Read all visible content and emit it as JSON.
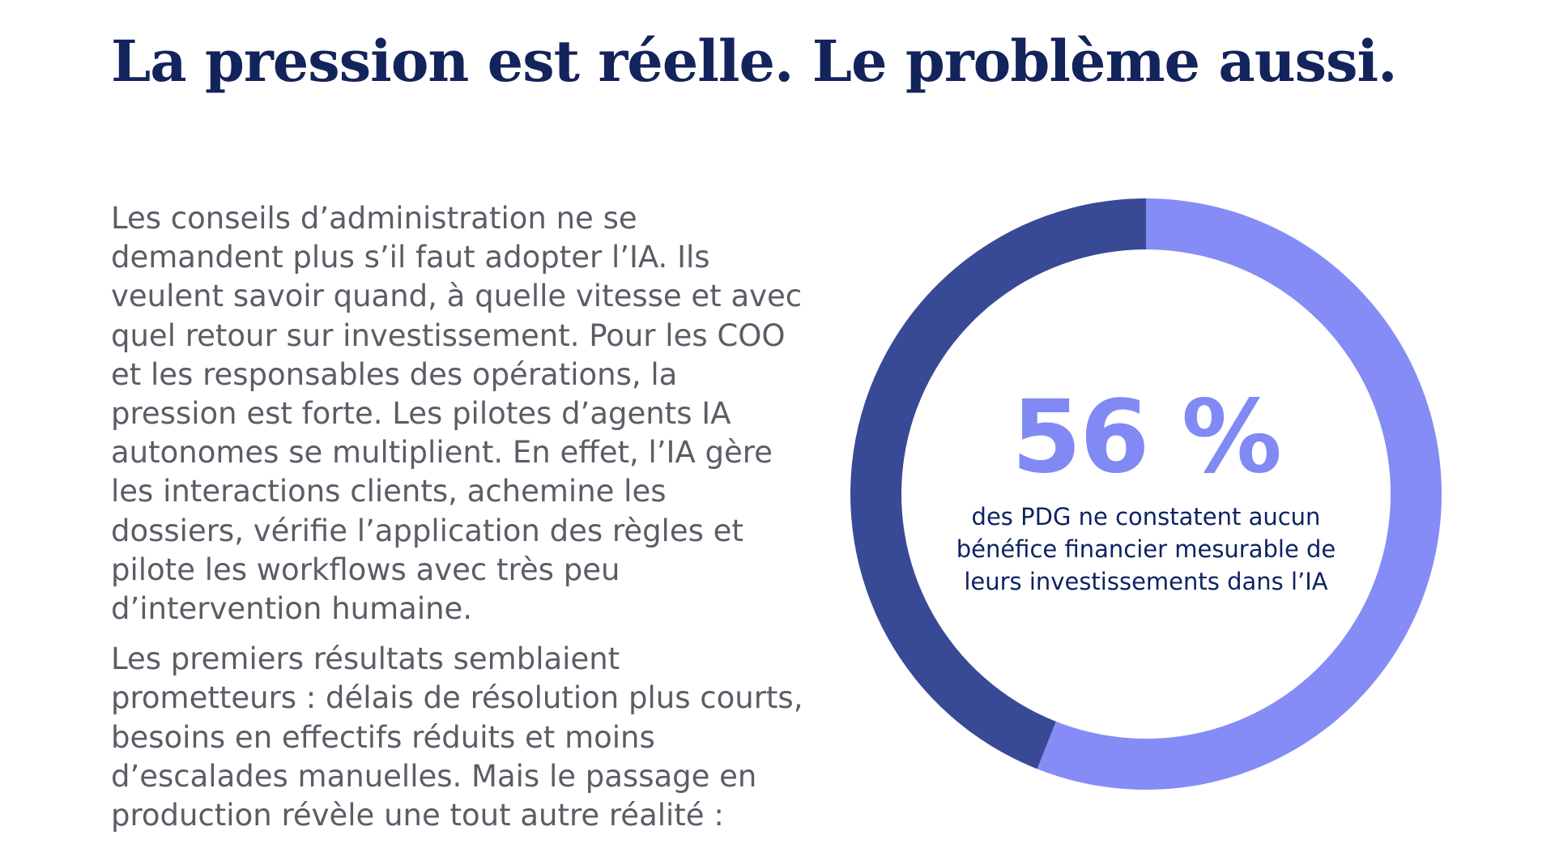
{
  "title": "La pression est réelle. Le problème aussi.",
  "body": {
    "paragraphs": [
      "Les conseils d’administration ne se demandent plus s’il faut adopter l’IA. Ils veulent savoir quand, à quelle vitesse et avec quel retour sur investissement. Pour les COO et les responsables des opérations, la pression est forte. Les pilotes d’agents IA autonomes se multiplient. En effet, l’IA gère les interactions clients, achemine les dossiers, vérifie l’application des règles et pilote les workflows avec très peu d’intervention humaine.",
      "Les premiers résultats semblaient prometteurs : délais de résolution plus courts, besoins en effectifs réduits et moins d’escalades manuelles. Mais le passage en production révèle une tout autre réalité :"
    ]
  },
  "stat": {
    "value": "56 %",
    "caption": "des PDG ne constatent aucun bénéfice financier mesurable de leurs investissements dans l’IA"
  },
  "chart_data": {
    "type": "pie",
    "subtype": "donut",
    "segments": [
      {
        "value": 56,
        "color": "#868cf6"
      },
      {
        "value": 44,
        "color": "#384a95"
      }
    ],
    "start": "top",
    "direction": "clockwise"
  }
}
